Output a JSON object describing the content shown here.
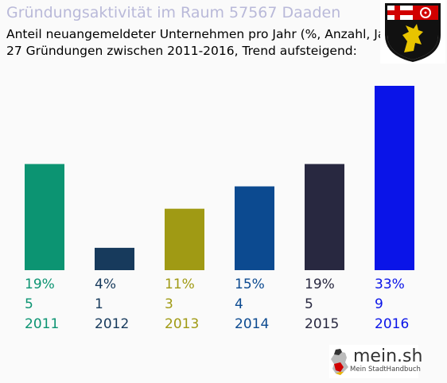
{
  "header": {
    "title": "Gründungsaktivität im Raum 57567 Daaden",
    "subtitle_line1": "Anteil neuangemeldeter Unternehmen pro Jahr (%, Anzahl, Jahr)",
    "subtitle_line2": "27 Gründungen zwischen 2011-2016, Trend aufsteigend:"
  },
  "crest": {
    "icon": "rhineland-palatinate-coat-of-arms"
  },
  "logo": {
    "name": "mein.sh",
    "tagline": "Mein StadtHandbuch",
    "icon": "germany-map-icon"
  },
  "chart_data": {
    "type": "bar",
    "categories": [
      "2011",
      "2012",
      "2013",
      "2014",
      "2015",
      "2016"
    ],
    "values": [
      19,
      4,
      11,
      15,
      19,
      33
    ],
    "percent_labels": [
      "19%",
      "4%",
      "11%",
      "15%",
      "19%",
      "33%"
    ],
    "counts": [
      5,
      1,
      3,
      4,
      5,
      9
    ],
    "colors": [
      "#0c9472",
      "#173a5c",
      "#a09a14",
      "#0c4a90",
      "#282840",
      "#0a14e8"
    ],
    "ylim": [
      0,
      33
    ]
  }
}
